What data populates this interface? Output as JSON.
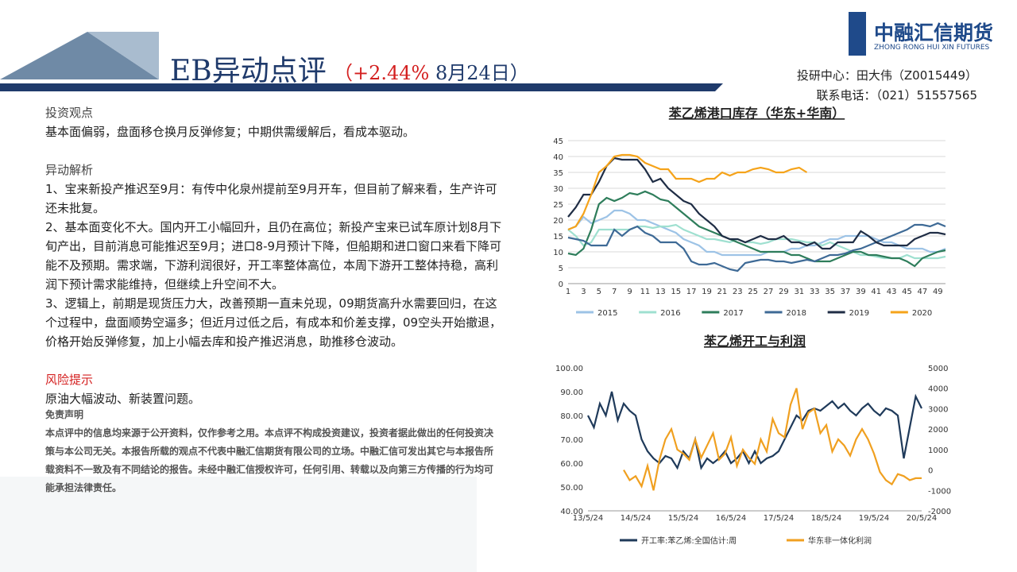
{
  "header": {
    "title": "EB异动点评",
    "change": "（+2.44%",
    "date": " 8月24日）",
    "analyst": "投研中心：田大伟（Z0015449）",
    "phone": "联系电话：（021）51557565",
    "logo": "中融汇信期货",
    "logo_en": "ZHONG RONG HUI XIN FUTURES"
  },
  "body": {
    "view_title": "投资观点",
    "view": "基本面偏弱，盘面移仓换月反弹修复；中期供需缓解后，看成本驱动。",
    "analysis_title": "异动解析",
    "analysis": [
      "1、宝来新投产推迟至9月：有传中化泉州提前至9月开车，但目前了解来看，生产许可还未批复。",
      "2、基本面变化不大。国内开工小幅回升，且仍在高位；新投产宝来已试车原计划8月下旬产出，目前消息可能推迟至9月；进口8-9月预计下降，但船期和进口窗口来看下降可能不及预期。需求端，下游利润很好，开工率整体高位，本周下游开工整体持稳，高利润下预计需求能维持，但继续上升空间不大。",
      "3、逻辑上，前期是现货压力大，改善预期一直未兑现，09期货高升水需要回归，在这个过程中，盘面顺势空逼多；但近月过低之后，有成本和价差支撑，09空头开始撤退，价格开始反弹修复，加上小幅去库和投产推迟消息，助推移仓波动。"
    ],
    "risk_title": "风险提示",
    "risk": "原油大幅波动、新装置问题。",
    "disclaimer_title": "免责声明",
    "disclaimer": "本点评中的信息均来源于公开资料，仅作参考之用。本点评不构成投资建议，投资者据此做出的任何投资决策与本公司无关。本报告所载的观点不代表中融汇信期货有限公司的立场。中融汇信可发出其它与本报告所载资料不一致及有不同结论的报告。未经中融汇信授权许可，任何引用、转载以及向第三方传播的行为均可能承担法律责任。"
  },
  "chart_data": [
    {
      "type": "line",
      "title": "苯乙烯港口库存（华东+华南）",
      "categories": [
        "1",
        null,
        "3",
        null,
        "5",
        null,
        "7",
        null,
        "9",
        null,
        "11",
        null,
        "13",
        null,
        "15",
        null,
        "17",
        null,
        "19",
        null,
        "21",
        null,
        "23",
        null,
        "25",
        null,
        "27",
        null,
        "29",
        null,
        "31",
        null,
        "33",
        null,
        "35",
        null,
        "37",
        null,
        "39",
        null,
        "41",
        null,
        "43",
        null,
        "45",
        null,
        "47",
        null,
        "49",
        null
      ],
      "ylim": [
        0,
        45
      ],
      "yticks": [
        0,
        5,
        10,
        15,
        20,
        25,
        30,
        35,
        40,
        45
      ],
      "grid": true,
      "legend": "bottom",
      "series": [
        {
          "name": "2015",
          "color": "#9dc3e6",
          "values": [
            17,
            18,
            21,
            19,
            20,
            21,
            23,
            23,
            22,
            20,
            20,
            19,
            18,
            17,
            16,
            14,
            13,
            12,
            10,
            10,
            9,
            9,
            9,
            9,
            9,
            9,
            10,
            10,
            10,
            11,
            11,
            12,
            12,
            13,
            14,
            14,
            15,
            15,
            15,
            15,
            14,
            13,
            13,
            12,
            11,
            11,
            11,
            10,
            10,
            11
          ]
        },
        {
          "name": "2016",
          "color": "#9fe0d0",
          "values": [
            17,
            15,
            12,
            13,
            17,
            17,
            17,
            17,
            17,
            18,
            18,
            17.5,
            18,
            18,
            18.5,
            17,
            16,
            15,
            14,
            14,
            13.5,
            13,
            14,
            13,
            13,
            12.5,
            13,
            14,
            14,
            14,
            13.5,
            13,
            13,
            12,
            13,
            12,
            11,
            10,
            9,
            9,
            8.5,
            8,
            8,
            8,
            9,
            8,
            8,
            8,
            8,
            8.5
          ]
        },
        {
          "name": "2017",
          "color": "#2e7d5b",
          "values": [
            9.5,
            9,
            11,
            17,
            25,
            27,
            26,
            27,
            28.5,
            28,
            29,
            28,
            26.5,
            26,
            24,
            22,
            20,
            18,
            17,
            16,
            15,
            14,
            13,
            12,
            11,
            10,
            10,
            10,
            10,
            9,
            9,
            8,
            7,
            7,
            7,
            8,
            9,
            10,
            10,
            9,
            9,
            8.5,
            8,
            8,
            7,
            5.5,
            8,
            9,
            10,
            10.5
          ]
        },
        {
          "name": "2018",
          "color": "#3e6a96",
          "values": [
            14.5,
            14,
            13.5,
            12,
            12,
            12,
            17,
            15,
            17,
            18,
            16,
            15,
            13,
            13,
            13,
            11,
            7,
            6,
            6,
            6.5,
            5.5,
            4.5,
            4,
            6.5,
            7,
            7.5,
            7.5,
            7,
            7,
            6.5,
            7,
            7.5,
            7,
            8,
            9,
            9,
            9.5,
            10.5,
            11,
            12,
            13,
            14,
            15,
            16,
            17,
            18.5,
            18.5,
            18,
            19,
            18
          ]
        },
        {
          "name": "2019",
          "color": "#1f2d45",
          "values": [
            21,
            24,
            28,
            28,
            32,
            37,
            39.5,
            39,
            39,
            39,
            36,
            32,
            33,
            30,
            28,
            26,
            25,
            22,
            20,
            18,
            15,
            14,
            14,
            13,
            14,
            15,
            14,
            14,
            15,
            13,
            13,
            12,
            13,
            11,
            11,
            13,
            13,
            13,
            16.5,
            15,
            13,
            12,
            12,
            12,
            12,
            14,
            15,
            16,
            16,
            15.5
          ]
        },
        {
          "name": "2020",
          "color": "#f5a31a",
          "values": [
            17,
            18,
            22,
            28,
            35,
            37,
            40,
            40.5,
            40.5,
            40,
            38,
            37,
            36,
            36,
            33,
            33,
            33,
            32,
            33,
            33,
            35,
            34,
            35,
            35,
            36,
            36.5,
            36,
            35,
            35,
            36,
            36.5,
            35,
            null,
            null,
            null,
            null,
            null,
            null,
            null,
            null,
            null,
            null,
            null,
            null,
            null,
            null,
            null,
            null,
            null,
            null
          ]
        }
      ]
    },
    {
      "type": "line",
      "title": "苯乙烯开工与利润",
      "categories": [
        "13/5/24",
        null,
        null,
        null,
        null,
        null,
        null,
        null,
        "14/5/24",
        null,
        null,
        null,
        null,
        null,
        null,
        null,
        "15/5/24",
        null,
        null,
        null,
        null,
        null,
        null,
        null,
        "16/5/24",
        null,
        null,
        null,
        null,
        null,
        null,
        null,
        "17/5/24",
        null,
        null,
        null,
        null,
        null,
        null,
        null,
        "18/5/24",
        null,
        null,
        null,
        null,
        null,
        null,
        null,
        "19/5/24",
        null,
        null,
        null,
        null,
        null,
        null,
        null,
        "20/5/24"
      ],
      "ylim": [
        40,
        100
      ],
      "yticks": [
        {
          "value": 40,
          "label": "40.00"
        },
        {
          "value": 50,
          "label": "50.00"
        },
        {
          "value": 60,
          "label": "60.00"
        },
        {
          "value": 70,
          "label": "70.00"
        },
        {
          "value": 80,
          "label": "80.00"
        },
        {
          "value": 90,
          "label": "90.00"
        },
        {
          "value": 100,
          "label": "100.00"
        }
      ],
      "y2lim": [
        -2000,
        5000
      ],
      "y2ticks": [
        -2000,
        -1000,
        0,
        1000,
        2000,
        3000,
        4000,
        5000
      ],
      "legend": "bottom",
      "series": [
        {
          "name": "开工率:苯乙烯:全国估计:周",
          "color": "#1f3a5a",
          "values": [
            80,
            75,
            85,
            80,
            90,
            78,
            85,
            82,
            80,
            70,
            65,
            62,
            60,
            63,
            62,
            58,
            65,
            62,
            70,
            58,
            62,
            60,
            62,
            65,
            60,
            62,
            65,
            60,
            65,
            60,
            62,
            63,
            65,
            70,
            75,
            80,
            78,
            82,
            83,
            82,
            84,
            86,
            83,
            85,
            82,
            80,
            83,
            85,
            82,
            80,
            83,
            82,
            80,
            62,
            75,
            88,
            83
          ]
        },
        {
          "name": "华东非一体化利润",
          "color": "#f0a020",
          "axis": "y2",
          "values": [
            null,
            null,
            null,
            null,
            null,
            null,
            0,
            -500,
            -300,
            -800,
            200,
            -1000,
            500,
            1500,
            2000,
            1000,
            800,
            500,
            1500,
            600,
            1200,
            1800,
            500,
            800,
            1600,
            200,
            1000,
            600,
            300,
            1500,
            900,
            2500,
            1800,
            1600,
            3200,
            4000,
            2000,
            2800,
            3000,
            1800,
            2200,
            900,
            1500,
            1200,
            700,
            1500,
            2000,
            1500,
            800,
            -100,
            -500,
            -700,
            -200,
            -300,
            -500,
            -400,
            -400
          ]
        }
      ]
    }
  ]
}
